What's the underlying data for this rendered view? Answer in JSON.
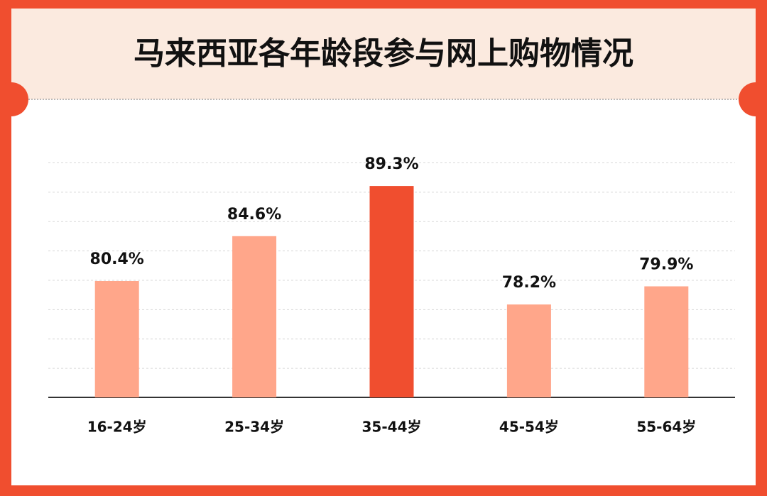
{
  "chart_data": {
    "type": "bar",
    "title": "马来西亚各年龄段参与网上购物情况",
    "categories": [
      "16-24岁",
      "25-34岁",
      "35-44岁",
      "45-54岁",
      "55-64岁"
    ],
    "values": [
      80.4,
      84.6,
      89.3,
      78.2,
      79.9
    ],
    "value_labels": [
      "80.4%",
      "84.6%",
      "89.3%",
      "78.2%",
      "79.9%"
    ],
    "colors": [
      "#ffa68a",
      "#ffa68a",
      "#f04e2f",
      "#ffa68a",
      "#ffa68a"
    ],
    "ylim": [
      69.5,
      91.5
    ]
  }
}
